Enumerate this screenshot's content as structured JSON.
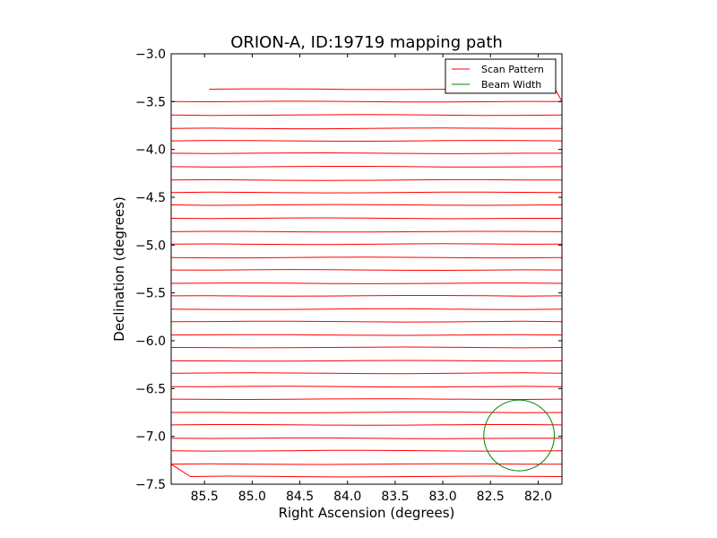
{
  "chart_data": {
    "type": "line",
    "title": "ORION-A, ID:19719 mapping path",
    "xlabel": "Right Ascension (degrees)",
    "ylabel": "Declination (degrees)",
    "xlim": [
      85.85,
      81.75
    ],
    "ylim": [
      -7.5,
      -3.0
    ],
    "x_ticks": [
      "85.5",
      "85.0",
      "84.5",
      "84.0",
      "83.5",
      "83.0",
      "82.5",
      "82.0"
    ],
    "x_tick_values": [
      85.5,
      85.0,
      84.5,
      84.0,
      83.5,
      83.0,
      82.5,
      82.0
    ],
    "y_ticks": [
      "−3.0",
      "−3.5",
      "−4.0",
      "−4.5",
      "−5.0",
      "−5.5",
      "−6.0",
      "−6.5",
      "−7.0",
      "−7.5"
    ],
    "y_tick_values": [
      -3.0,
      -3.5,
      -4.0,
      -4.5,
      -5.0,
      -5.5,
      -6.0,
      -6.5,
      -7.0,
      -7.5
    ],
    "grid": false,
    "legend_position": "top-right",
    "series": [
      {
        "name": "Scan Pattern",
        "color": "#ff0000",
        "scan_rows": [
          {
            "y_left": -3.37,
            "y_right": -3.37,
            "x_start": 85.45,
            "x_end": 81.82
          },
          {
            "y_left": -3.5,
            "y_right": -3.5,
            "x_start": 85.85,
            "x_end": 81.75
          },
          {
            "y_left": -3.64,
            "y_right": -3.64,
            "x_start": 85.85,
            "x_end": 81.75
          },
          {
            "y_left": -3.78,
            "y_right": -3.78,
            "x_start": 85.85,
            "x_end": 81.75
          },
          {
            "y_left": -3.91,
            "y_right": -3.91,
            "x_start": 85.85,
            "x_end": 81.75
          },
          {
            "y_left": -4.04,
            "y_right": -4.04,
            "x_start": 85.85,
            "x_end": 81.75
          },
          {
            "y_left": -4.18,
            "y_right": -4.18,
            "x_start": 85.85,
            "x_end": 81.75
          },
          {
            "y_left": -4.32,
            "y_right": -4.32,
            "x_start": 85.85,
            "x_end": 81.75
          },
          {
            "y_left": -4.45,
            "y_right": -4.45,
            "x_start": 85.85,
            "x_end": 81.75
          },
          {
            "y_left": -4.58,
            "y_right": -4.58,
            "x_start": 85.85,
            "x_end": 81.75
          },
          {
            "y_left": -4.72,
            "y_right": -4.72,
            "x_start": 85.85,
            "x_end": 81.75
          },
          {
            "y_left": -4.86,
            "y_right": -4.86,
            "x_start": 85.85,
            "x_end": 81.75
          },
          {
            "y_left": -4.99,
            "y_right": -4.99,
            "x_start": 85.85,
            "x_end": 81.75
          },
          {
            "y_left": -5.13,
            "y_right": -5.13,
            "x_start": 85.85,
            "x_end": 81.75
          },
          {
            "y_left": -5.26,
            "y_right": -5.26,
            "x_start": 85.85,
            "x_end": 81.75
          },
          {
            "y_left": -5.4,
            "y_right": -5.4,
            "x_start": 85.85,
            "x_end": 81.75
          },
          {
            "y_left": -5.53,
            "y_right": -5.53,
            "x_start": 85.85,
            "x_end": 81.75
          },
          {
            "y_left": -5.67,
            "y_right": -5.67,
            "x_start": 85.85,
            "x_end": 81.75
          },
          {
            "y_left": -5.8,
            "y_right": -5.8,
            "x_start": 85.85,
            "x_end": 81.75
          },
          {
            "y_left": -5.94,
            "y_right": -5.94,
            "x_start": 85.85,
            "x_end": 81.75
          },
          {
            "y_left": -6.07,
            "y_right": -6.07,
            "x_start": 85.85,
            "x_end": 81.75
          },
          {
            "y_left": -6.21,
            "y_right": -6.21,
            "x_start": 85.85,
            "x_end": 81.75
          },
          {
            "y_left": -6.34,
            "y_right": -6.34,
            "x_start": 85.85,
            "x_end": 81.75
          },
          {
            "y_left": -6.48,
            "y_right": -6.48,
            "x_start": 85.85,
            "x_end": 81.75
          },
          {
            "y_left": -6.61,
            "y_right": -6.61,
            "x_start": 85.85,
            "x_end": 81.75
          },
          {
            "y_left": -6.75,
            "y_right": -6.75,
            "x_start": 85.85,
            "x_end": 81.75
          },
          {
            "y_left": -6.88,
            "y_right": -6.88,
            "x_start": 85.85,
            "x_end": 81.75
          },
          {
            "y_left": -7.02,
            "y_right": -7.02,
            "x_start": 85.85,
            "x_end": 81.75
          },
          {
            "y_left": -7.15,
            "y_right": -7.15,
            "x_start": 85.85,
            "x_end": 81.75
          },
          {
            "y_left": -7.29,
            "y_right": -7.29,
            "x_start": 85.85,
            "x_end": 81.75
          },
          {
            "y_left": -7.42,
            "y_right": -7.42,
            "x_start": 85.65,
            "x_end": 81.75
          }
        ]
      },
      {
        "name": "Beam Width",
        "color": "#008000",
        "circle": {
          "center_x": 82.2,
          "center_y": -6.99,
          "radius_deg": 0.37
        }
      }
    ]
  }
}
